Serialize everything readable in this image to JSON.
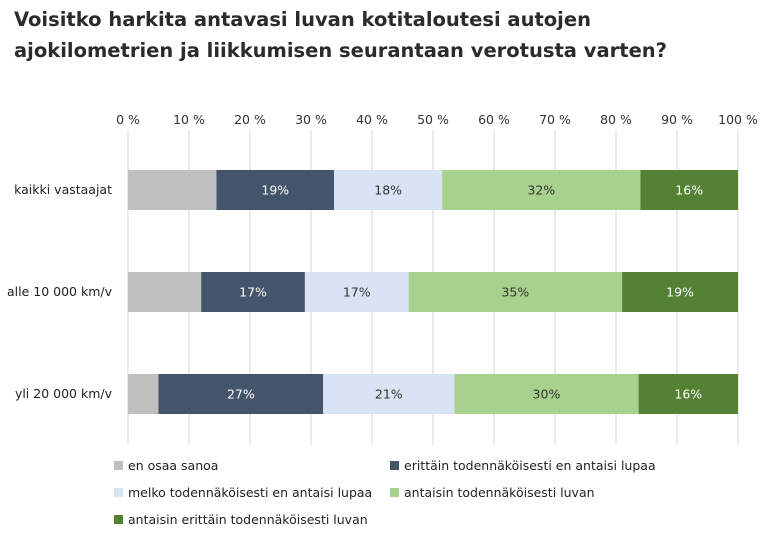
{
  "title": "Voisitko harkita antavasi luvan kotitaloutesi autojen ajokilometrien ja liikkumisen seurantaan verotusta varten?",
  "chart_data": {
    "type": "bar",
    "orientation": "horizontal",
    "stacked": "100%",
    "title": "Voisitko harkita antavasi luvan kotitaloutesi autojen ajokilometrien ja liikkumisen seurantaan verotusta varten?",
    "xlim": [
      0,
      100
    ],
    "xticks": [
      "0 %",
      "10 %",
      "20 %",
      "30 %",
      "40 %",
      "50 %",
      "60 %",
      "70 %",
      "80 %",
      "90 %",
      "100 %"
    ],
    "xaxis_position": "top",
    "grid": "vertical",
    "legend_position": "bottom",
    "categories": [
      "kaikki vastaajat",
      "alle 10 000 km/v",
      "yli 20 000 km/v"
    ],
    "series": [
      {
        "name": "en osaa sanoa",
        "color": "#bfbfbf",
        "label_color": "#333333",
        "values": [
          14.5,
          12,
          5
        ],
        "labels": [
          "",
          "",
          ""
        ]
      },
      {
        "name": "erittäin todennäköisesti en antaisi lupaa",
        "color": "#44546a",
        "label_color": "#ffffff",
        "values": [
          19.3,
          17,
          27
        ],
        "labels": [
          "19%",
          "17%",
          "27%"
        ]
      },
      {
        "name": "melko todennäköisesti en antaisi lupaa",
        "color": "#dae3f3",
        "label_color": "#333333",
        "values": [
          17.7,
          17,
          21.5
        ],
        "labels": [
          "18%",
          "17%",
          "21%"
        ]
      },
      {
        "name": "antaisin todennäköisesti luvan",
        "color": "#a9d18e",
        "label_color": "#333333",
        "values": [
          32.5,
          35,
          30.2
        ],
        "labels": [
          "32%",
          "35%",
          "30%"
        ]
      },
      {
        "name": "antaisin erittäin todennäköisesti luvan",
        "color": "#548235",
        "label_color": "#ffffff",
        "values": [
          16,
          19,
          16.3
        ],
        "labels": [
          "16%",
          "19%",
          "16%"
        ]
      }
    ]
  }
}
